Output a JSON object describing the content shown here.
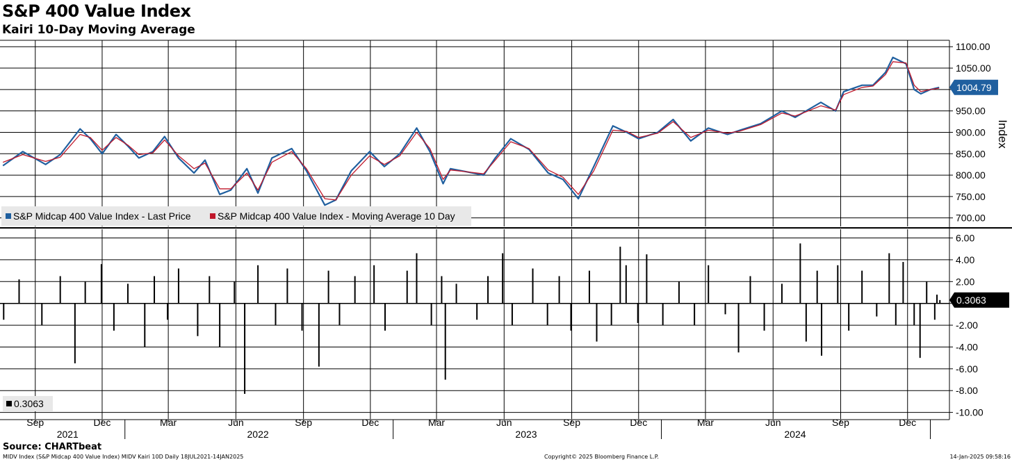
{
  "title": "S&P 400 Value Index",
  "subtitle": "Kairi 10-Day Moving Average",
  "source": "Source: CHARTbeat",
  "footer": {
    "left": "MIDV Index (S&P Midcap 400 Value Index) MIDV Kairi 10D  Daily 18JUL2021-14JAN2025",
    "center": "Copyright© 2025 Bloomberg Finance L.P.",
    "right": "14-Jan-2025 09:58:16"
  },
  "colors": {
    "price": "#1f5f9f",
    "ma": "#c0182b",
    "bars": "#000000",
    "last_label_bg": "#1f5f9f"
  },
  "chart_data": [
    {
      "type": "line",
      "ylabel": "Index",
      "ylim": [
        680,
        1115
      ],
      "yticks": [
        700,
        750,
        800,
        850,
        900,
        950,
        1000,
        1050,
        1100
      ],
      "ytick_labels": [
        "700.00",
        "750.00",
        "800.00",
        "850.00",
        "900.00",
        "950.00",
        "1000.00",
        "1050.00",
        "1100.00"
      ],
      "last_value_label": "1004.79",
      "legend_position": "bottom-left",
      "series": [
        {
          "name": "S&P Midcap 400 Value Index - Last Price",
          "x": [
            "2021-07-19",
            "2021-08-15",
            "2021-09-15",
            "2021-10-05",
            "2021-11-01",
            "2021-11-15",
            "2021-12-01",
            "2021-12-20",
            "2022-01-05",
            "2022-01-20",
            "2022-02-08",
            "2022-02-24",
            "2022-03-15",
            "2022-04-05",
            "2022-04-20",
            "2022-05-10",
            "2022-05-25",
            "2022-06-16",
            "2022-07-01",
            "2022-07-20",
            "2022-08-16",
            "2022-09-05",
            "2022-09-30",
            "2022-10-15",
            "2022-11-05",
            "2022-11-30",
            "2022-12-20",
            "2023-01-10",
            "2023-02-02",
            "2023-02-20",
            "2023-03-10",
            "2023-03-20",
            "2023-04-10",
            "2023-05-04",
            "2023-05-20",
            "2023-06-10",
            "2023-07-05",
            "2023-07-31",
            "2023-08-20",
            "2023-09-10",
            "2023-10-01",
            "2023-10-27",
            "2023-11-15",
            "2023-12-01",
            "2023-12-27",
            "2024-01-17",
            "2024-02-10",
            "2024-03-05",
            "2024-03-31",
            "2024-04-17",
            "2024-05-15",
            "2024-06-13",
            "2024-07-01",
            "2024-07-16",
            "2024-08-05",
            "2024-08-25",
            "2024-09-05",
            "2024-09-30",
            "2024-10-15",
            "2024-11-01",
            "2024-11-11",
            "2024-11-29",
            "2024-12-10",
            "2024-12-19",
            "2025-01-01",
            "2025-01-13"
          ],
          "values": [
            822,
            855,
            825,
            848,
            908,
            885,
            850,
            895,
            868,
            840,
            855,
            890,
            840,
            805,
            835,
            755,
            765,
            815,
            758,
            840,
            862,
            810,
            730,
            742,
            810,
            855,
            820,
            850,
            910,
            855,
            780,
            815,
            808,
            800,
            840,
            885,
            860,
            805,
            790,
            745,
            820,
            915,
            900,
            885,
            900,
            930,
            880,
            910,
            895,
            905,
            920,
            950,
            935,
            950,
            970,
            950,
            995,
            1010,
            1010,
            1040,
            1075,
            1060,
            1000,
            990,
            1000,
            1005
          ]
        },
        {
          "name": "S&P Midcap 400 Value Index - Moving Average 10 Day",
          "x": [
            "2021-07-19",
            "2021-08-15",
            "2021-09-15",
            "2021-10-05",
            "2021-11-01",
            "2021-11-15",
            "2021-12-01",
            "2021-12-20",
            "2022-01-05",
            "2022-01-20",
            "2022-02-08",
            "2022-02-24",
            "2022-03-15",
            "2022-04-05",
            "2022-04-20",
            "2022-05-10",
            "2022-05-25",
            "2022-06-16",
            "2022-07-01",
            "2022-07-20",
            "2022-08-16",
            "2022-09-05",
            "2022-09-30",
            "2022-10-15",
            "2022-11-05",
            "2022-11-30",
            "2022-12-20",
            "2023-01-10",
            "2023-02-02",
            "2023-02-20",
            "2023-03-10",
            "2023-03-20",
            "2023-04-10",
            "2023-05-04",
            "2023-05-20",
            "2023-06-10",
            "2023-07-05",
            "2023-07-31",
            "2023-08-20",
            "2023-09-10",
            "2023-10-01",
            "2023-10-27",
            "2023-11-15",
            "2023-12-01",
            "2023-12-27",
            "2024-01-17",
            "2024-02-10",
            "2024-03-05",
            "2024-03-31",
            "2024-04-17",
            "2024-05-15",
            "2024-06-13",
            "2024-07-01",
            "2024-07-16",
            "2024-08-05",
            "2024-08-25",
            "2024-09-05",
            "2024-09-30",
            "2024-10-15",
            "2024-11-01",
            "2024-11-11",
            "2024-11-29",
            "2024-12-10",
            "2024-12-19",
            "2025-01-01",
            "2025-01-13"
          ],
          "values": [
            830,
            848,
            832,
            842,
            895,
            888,
            858,
            888,
            870,
            848,
            852,
            882,
            845,
            815,
            828,
            768,
            768,
            805,
            765,
            830,
            855,
            815,
            745,
            742,
            800,
            845,
            825,
            845,
            900,
            862,
            790,
            812,
            808,
            803,
            835,
            878,
            862,
            812,
            795,
            755,
            810,
            905,
            902,
            888,
            898,
            925,
            888,
            905,
            898,
            903,
            918,
            945,
            938,
            948,
            962,
            952,
            988,
            1005,
            1008,
            1035,
            1065,
            1062,
            1010,
            995,
            1000,
            1003
          ]
        }
      ]
    },
    {
      "type": "bar",
      "ylim": [
        -10.6,
        6.8
      ],
      "yticks": [
        -10,
        -8,
        -6,
        -4,
        -2,
        0,
        2,
        4,
        6
      ],
      "ytick_labels": [
        "-10.00",
        "-8.00",
        "-6.00",
        "-4.00",
        "-2.00",
        "",
        "2.00",
        "4.00",
        "6.00"
      ],
      "last_value_label": "0.3063",
      "legend_label": "0.3063",
      "legend_position": "bottom-left",
      "x": [
        "2021-07-20",
        "2021-08-10",
        "2021-09-10",
        "2021-10-05",
        "2021-10-25",
        "2021-11-08",
        "2021-11-30",
        "2021-12-17",
        "2022-01-05",
        "2022-01-28",
        "2022-02-10",
        "2022-02-28",
        "2022-03-15",
        "2022-04-10",
        "2022-04-26",
        "2022-05-10",
        "2022-05-30",
        "2022-06-13",
        "2022-07-01",
        "2022-07-25",
        "2022-08-10",
        "2022-08-30",
        "2022-09-22",
        "2022-10-05",
        "2022-10-20",
        "2022-11-10",
        "2022-12-06",
        "2022-12-21",
        "2023-01-20",
        "2023-02-02",
        "2023-02-22",
        "2023-03-08",
        "2023-03-13",
        "2023-03-28",
        "2023-04-25",
        "2023-05-10",
        "2023-05-30",
        "2023-06-12",
        "2023-07-10",
        "2023-07-30",
        "2023-08-15",
        "2023-08-31",
        "2023-09-25",
        "2023-10-05",
        "2023-10-25",
        "2023-11-06",
        "2023-11-14",
        "2023-11-30",
        "2023-12-12",
        "2024-01-03",
        "2024-01-25",
        "2024-02-15",
        "2024-03-05",
        "2024-03-28",
        "2024-04-15",
        "2024-05-01",
        "2024-05-20",
        "2024-06-13",
        "2024-07-08",
        "2024-07-16",
        "2024-07-31",
        "2024-08-06",
        "2024-08-28",
        "2024-09-12",
        "2024-09-30",
        "2024-10-20",
        "2024-11-06",
        "2024-11-15",
        "2024-11-25",
        "2024-12-10",
        "2024-12-18",
        "2024-12-27",
        "2025-01-07",
        "2025-01-10",
        "2025-01-14"
      ],
      "values": [
        -1.5,
        2.2,
        -2.0,
        2.5,
        -5.5,
        2.0,
        3.6,
        -2.5,
        1.8,
        -4.0,
        2.5,
        -1.5,
        3.2,
        -3.0,
        2.5,
        -4.0,
        2.0,
        -8.3,
        3.5,
        -2.0,
        3.2,
        -2.5,
        -5.8,
        3.0,
        -2.0,
        2.5,
        3.5,
        -2.5,
        3.0,
        4.6,
        -2.0,
        2.5,
        -7.0,
        1.8,
        -1.5,
        2.5,
        4.6,
        -2.0,
        3.2,
        -2.0,
        2.5,
        -2.5,
        3.0,
        -3.5,
        -2.0,
        5.2,
        3.5,
        -1.8,
        4.5,
        -2.0,
        2.0,
        -2.0,
        3.5,
        -1.0,
        -4.5,
        2.5,
        -2.5,
        1.8,
        5.5,
        -3.5,
        3.0,
        -4.8,
        3.5,
        -2.5,
        3.0,
        -1.2,
        4.6,
        -2.0,
        3.8,
        -2.0,
        -5.0,
        2.0,
        -1.5,
        0.8,
        0.3063
      ]
    }
  ],
  "x_axis": {
    "month_ticks": [
      {
        "date": "2021-09-01",
        "label": "Sep"
      },
      {
        "date": "2021-12-01",
        "label": "Dec"
      },
      {
        "date": "2022-03-01",
        "label": "Mar"
      },
      {
        "date": "2022-06-01",
        "label": "Jun"
      },
      {
        "date": "2022-09-01",
        "label": "Sep"
      },
      {
        "date": "2022-12-01",
        "label": "Dec"
      },
      {
        "date": "2023-03-01",
        "label": "Mar"
      },
      {
        "date": "2023-06-01",
        "label": "Jun"
      },
      {
        "date": "2023-09-01",
        "label": "Sep"
      },
      {
        "date": "2023-12-01",
        "label": "Dec"
      },
      {
        "date": "2024-03-01",
        "label": "Mar"
      },
      {
        "date": "2024-06-01",
        "label": "Jun"
      },
      {
        "date": "2024-09-01",
        "label": "Sep"
      },
      {
        "date": "2024-12-01",
        "label": "Dec"
      }
    ],
    "year_labels": [
      {
        "date": "2021-10-15",
        "label": "2021"
      },
      {
        "date": "2022-07-01",
        "label": "2022"
      },
      {
        "date": "2023-07-01",
        "label": "2023"
      },
      {
        "date": "2024-07-01",
        "label": "2024"
      }
    ],
    "year_boundaries": [
      "2022-01-01",
      "2023-01-01",
      "2024-01-01",
      "2025-01-01"
    ]
  }
}
